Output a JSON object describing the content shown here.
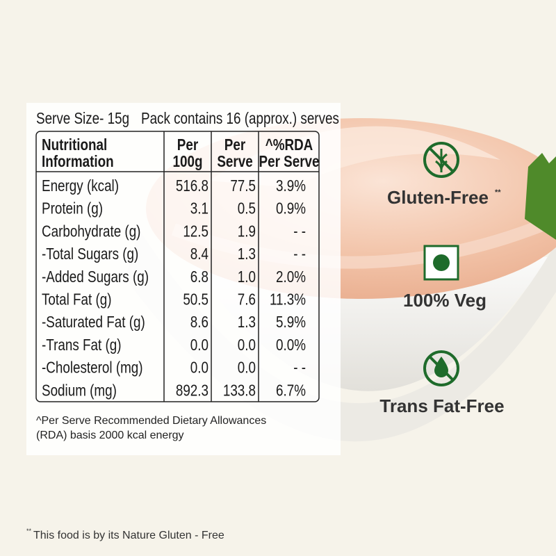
{
  "serve_size": "Serve Size- 15g",
  "pack_info": "Pack contains 16 (approx.) serves",
  "table": {
    "header": [
      [
        "Nutritional",
        "Information"
      ],
      [
        "Per",
        "100g"
      ],
      [
        "Per",
        "Serve"
      ],
      [
        "^%RDA",
        "Per Serve"
      ]
    ],
    "rows": [
      [
        "Energy (kcal)",
        "516.8",
        "77.5",
        "3.9%"
      ],
      [
        "Protein (g)",
        "3.1",
        "0.5",
        "0.9%"
      ],
      [
        "Carbohydrate (g)",
        "12.5",
        "1.9",
        "- -"
      ],
      [
        "-Total Sugars (g)",
        "8.4",
        "1.3",
        "- -"
      ],
      [
        "-Added Sugars (g)",
        "6.8",
        "1.0",
        "2.0%"
      ],
      [
        "Total Fat (g)",
        "50.5",
        "7.6",
        "11.3%"
      ],
      [
        "-Saturated Fat (g)",
        "8.6",
        "1.3",
        "5.9%"
      ],
      [
        "-Trans Fat (g)",
        "0.0",
        "0.0",
        "0.0%"
      ],
      [
        "-Cholesterol (mg)",
        "0.0",
        "0.0",
        "- -"
      ],
      [
        "Sodium (mg)",
        "892.3",
        "133.8",
        "6.7%"
      ]
    ]
  },
  "footnote": [
    "^Per Serve Recommended Dietary Allowances",
    "(RDA) basis 2000 kcal energy"
  ],
  "badges": [
    {
      "label": "Gluten-Free",
      "mark": "**"
    },
    {
      "label": "100% Veg"
    },
    {
      "label": "Trans Fat-Free"
    }
  ],
  "bottom_note": {
    "mark": "**",
    "text": "This food is by its Nature Gluten - Free"
  }
}
